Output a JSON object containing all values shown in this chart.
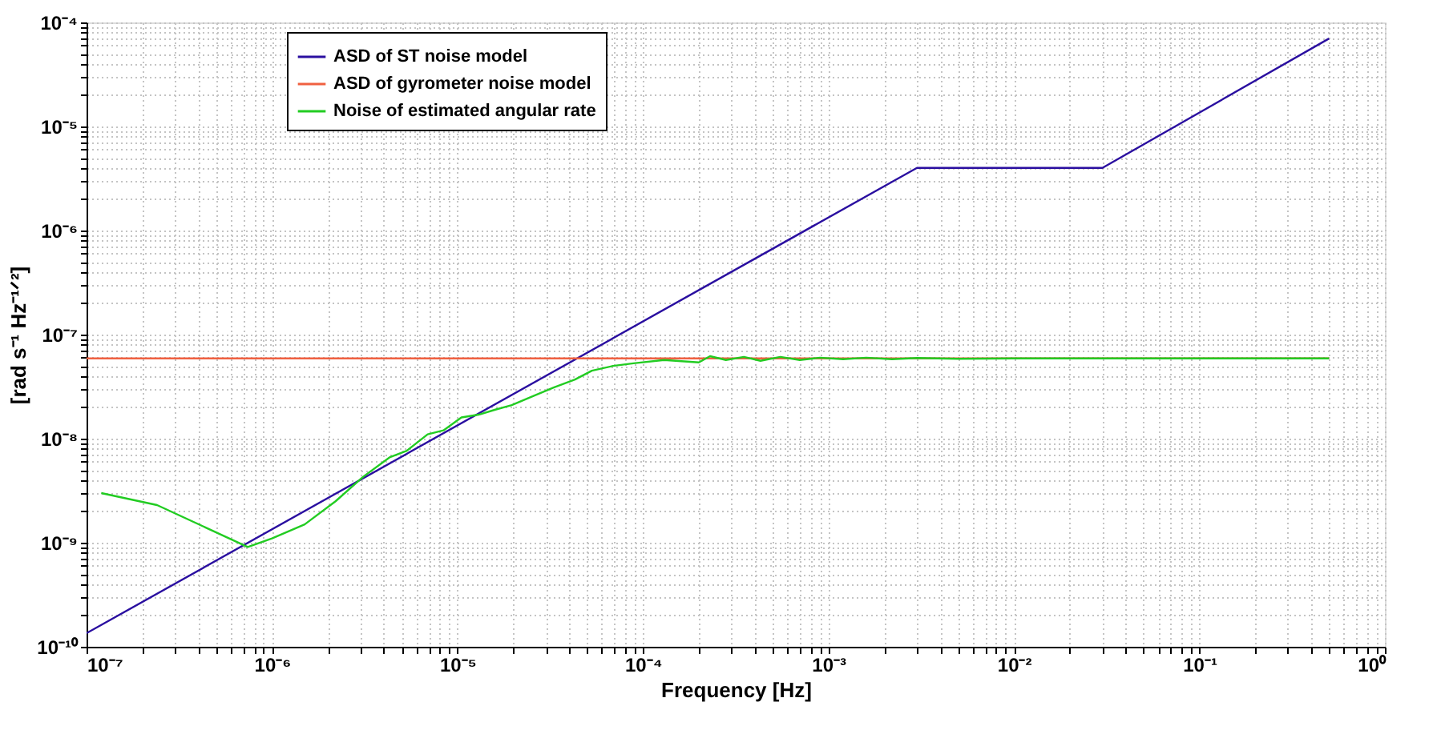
{
  "chart_data": {
    "type": "line",
    "xlabel": "Frequency  [Hz]",
    "ylabel": "[rad s⁻¹ Hz⁻¹ᐟ²]",
    "log": "xy",
    "grid": true,
    "legend": "top left",
    "line_style": "solid",
    "marker": "none",
    "xlim": [
      1e-07,
      1
    ],
    "ylim": [
      1e-10,
      0.0001
    ],
    "xticks": [
      {
        "value": 1e-07,
        "label": "10⁻⁷"
      },
      {
        "value": 1e-06,
        "label": "10⁻⁶"
      },
      {
        "value": 1e-05,
        "label": "10⁻⁵"
      },
      {
        "value": 0.0001,
        "label": "10⁻⁴"
      },
      {
        "value": 0.001,
        "label": "10⁻³"
      },
      {
        "value": 0.01,
        "label": "10⁻²"
      },
      {
        "value": 0.1,
        "label": "10⁻¹"
      },
      {
        "value": 1,
        "label": "10⁰"
      }
    ],
    "yticks": [
      {
        "value": 1e-10,
        "label": "10⁻¹⁰"
      },
      {
        "value": 1e-09,
        "label": "10⁻⁹"
      },
      {
        "value": 1e-08,
        "label": "10⁻⁸"
      },
      {
        "value": 1e-07,
        "label": "10⁻⁷"
      },
      {
        "value": 1e-06,
        "label": "10⁻⁶"
      },
      {
        "value": 1e-05,
        "label": "10⁻⁵"
      },
      {
        "value": 0.0001,
        "label": "10⁻⁴"
      }
    ],
    "series": [
      {
        "name": "ASD of ST noise model",
        "color": "#2a0fa0",
        "x": [
          1e-07,
          0.003,
          0.03,
          0.5
        ],
        "values": [
          1.35e-10,
          4e-06,
          4e-06,
          7e-05
        ]
      },
      {
        "name": "ASD of gyrometer noise model",
        "color": "#f06040",
        "x": [
          1e-07,
          0.5
        ],
        "values": [
          5.9e-08,
          5.9e-08
        ]
      },
      {
        "name": "Noise of estimated angular rate",
        "color": "#22cc22",
        "x": [
          1.2e-07,
          2.4e-07,
          7.4e-07,
          1e-06,
          1.5e-06,
          2.2e-06,
          3.1e-06,
          4.3e-06,
          5.3e-06,
          6.9e-06,
          8.4e-06,
          1.05e-05,
          1.3e-05,
          1.6e-05,
          1.96e-05,
          2.6e-05,
          3.3e-05,
          4.3e-05,
          5.3e-05,
          6.9e-05,
          8.9e-05,
          0.00013,
          0.0002,
          0.00023,
          0.00028,
          0.00035,
          0.00043,
          0.00055,
          0.0007,
          0.0009,
          0.0012,
          0.0016,
          0.0022,
          0.003,
          0.005,
          0.01,
          0.5
        ],
        "values": [
          3e-09,
          2.3e-09,
          9.1e-10,
          1.1e-09,
          1.5e-09,
          2.5e-09,
          4.3e-09,
          6.6e-09,
          7.6e-09,
          1.1e-08,
          1.2e-08,
          1.6e-08,
          1.7e-08,
          1.9e-08,
          2.1e-08,
          2.6e-08,
          3.1e-08,
          3.7e-08,
          4.5e-08,
          5e-08,
          5.3e-08,
          5.7e-08,
          5.4e-08,
          6.2e-08,
          5.7e-08,
          6.1e-08,
          5.6e-08,
          6.1e-08,
          5.7e-08,
          6e-08,
          5.8e-08,
          6e-08,
          5.8e-08,
          5.95e-08,
          5.85e-08,
          5.9e-08,
          5.9e-08
        ]
      }
    ]
  }
}
